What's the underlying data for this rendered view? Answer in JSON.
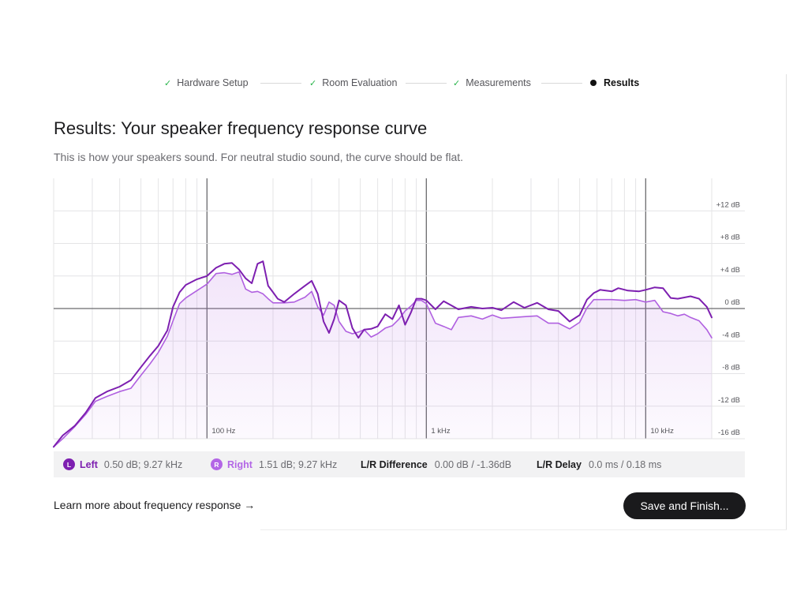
{
  "stepper": {
    "steps": [
      {
        "label": "Hardware Setup",
        "done": true
      },
      {
        "label": "Room Evaluation",
        "done": true
      },
      {
        "label": "Measurements",
        "done": true
      },
      {
        "label": "Results",
        "done": false,
        "active": true
      }
    ],
    "check_glyph": "✓",
    "check_color": "#28b44a"
  },
  "page": {
    "title": "Results: Your speaker frequency response curve",
    "subtitle": "This is how your speakers sound. For neutral studio sound, the curve should be flat."
  },
  "chart_data": {
    "type": "line",
    "x_scale": "log",
    "xlim": [
      20,
      20000
    ],
    "ylim": [
      -16,
      16
    ],
    "x_tick_labels": [
      {
        "value": 100,
        "label": "100 Hz"
      },
      {
        "value": 1000,
        "label": "1 kHz"
      },
      {
        "value": 10000,
        "label": "10 kHz"
      }
    ],
    "y_ticks": [
      {
        "value": 12,
        "label": "+12 dB"
      },
      {
        "value": 8,
        "label": "+8 dB"
      },
      {
        "value": 4,
        "label": "+4 dB"
      },
      {
        "value": 0,
        "label": "0 dB"
      },
      {
        "value": -4,
        "label": "-4 dB"
      },
      {
        "value": -8,
        "label": "-8 dB"
      },
      {
        "value": -12,
        "label": "-12 dB"
      },
      {
        "value": -16,
        "label": "-16 dB"
      }
    ],
    "grid": true,
    "series": [
      {
        "name": "Left",
        "color": "#7d1fb0",
        "points": [
          [
            20,
            -17
          ],
          [
            22,
            -15.6
          ],
          [
            25,
            -14.4
          ],
          [
            28,
            -12.8
          ],
          [
            31,
            -11
          ],
          [
            35,
            -10.2
          ],
          [
            40,
            -9.6
          ],
          [
            45,
            -8.8
          ],
          [
            50,
            -7.2
          ],
          [
            55,
            -5.8
          ],
          [
            60,
            -4.6
          ],
          [
            66,
            -2.7
          ],
          [
            70,
            0.2
          ],
          [
            75,
            2
          ],
          [
            80,
            2.9
          ],
          [
            90,
            3.6
          ],
          [
            100,
            4
          ],
          [
            110,
            5
          ],
          [
            120,
            5.5
          ],
          [
            130,
            5.6
          ],
          [
            140,
            4.8
          ],
          [
            150,
            3.7
          ],
          [
            160,
            3.1
          ],
          [
            170,
            5.5
          ],
          [
            180,
            5.8
          ],
          [
            190,
            2.8
          ],
          [
            200,
            2
          ],
          [
            210,
            1.2
          ],
          [
            225,
            0.8
          ],
          [
            250,
            1.8
          ],
          [
            280,
            2.8
          ],
          [
            300,
            3.4
          ],
          [
            320,
            1.8
          ],
          [
            340,
            -1.6
          ],
          [
            360,
            -3
          ],
          [
            380,
            -1.3
          ],
          [
            400,
            1
          ],
          [
            430,
            0.4
          ],
          [
            460,
            -2.4
          ],
          [
            490,
            -3.6
          ],
          [
            520,
            -2.6
          ],
          [
            560,
            -2.5
          ],
          [
            600,
            -2.2
          ],
          [
            650,
            -0.7
          ],
          [
            700,
            -1.3
          ],
          [
            750,
            0.4
          ],
          [
            800,
            -2
          ],
          [
            850,
            -0.5
          ],
          [
            900,
            1.2
          ],
          [
            950,
            1.2
          ],
          [
            1000,
            1
          ],
          [
            1100,
            -0.1
          ],
          [
            1200,
            0.9
          ],
          [
            1400,
            -0.1
          ],
          [
            1600,
            0.2
          ],
          [
            1800,
            0
          ],
          [
            2000,
            0.1
          ],
          [
            2200,
            -0.2
          ],
          [
            2500,
            0.8
          ],
          [
            2800,
            0.1
          ],
          [
            3200,
            0.7
          ],
          [
            3600,
            -0.1
          ],
          [
            4000,
            -0.3
          ],
          [
            4500,
            -1.6
          ],
          [
            5000,
            -0.8
          ],
          [
            5400,
            1.1
          ],
          [
            5800,
            1.9
          ],
          [
            6200,
            2.3
          ],
          [
            7000,
            2.1
          ],
          [
            7500,
            2.5
          ],
          [
            8300,
            2.2
          ],
          [
            9300,
            2.1
          ],
          [
            10000,
            2.3
          ],
          [
            11000,
            2.6
          ],
          [
            12000,
            2.5
          ],
          [
            13000,
            1.3
          ],
          [
            14000,
            1.2
          ],
          [
            16000,
            1.5
          ],
          [
            17500,
            1.2
          ],
          [
            19000,
            0.2
          ],
          [
            20000,
            -1.1
          ]
        ]
      },
      {
        "name": "Right",
        "color": "#b060e0",
        "points": [
          [
            20,
            -17
          ],
          [
            22,
            -16
          ],
          [
            25,
            -14.5
          ],
          [
            28,
            -13
          ],
          [
            31,
            -11.4
          ],
          [
            35,
            -10.8
          ],
          [
            40,
            -10.2
          ],
          [
            45,
            -9.8
          ],
          [
            50,
            -8.2
          ],
          [
            55,
            -6.8
          ],
          [
            60,
            -5.4
          ],
          [
            66,
            -3.4
          ],
          [
            70,
            -1.5
          ],
          [
            75,
            0.6
          ],
          [
            80,
            1.3
          ],
          [
            90,
            2.2
          ],
          [
            100,
            3
          ],
          [
            110,
            4.3
          ],
          [
            120,
            4.4
          ],
          [
            130,
            4.2
          ],
          [
            140,
            4.5
          ],
          [
            150,
            2.4
          ],
          [
            160,
            2
          ],
          [
            170,
            2.1
          ],
          [
            180,
            1.8
          ],
          [
            190,
            1.2
          ],
          [
            200,
            0.7
          ],
          [
            225,
            0.7
          ],
          [
            250,
            0.8
          ],
          [
            280,
            1.4
          ],
          [
            300,
            2.1
          ],
          [
            320,
            0.2
          ],
          [
            340,
            -0.8
          ],
          [
            360,
            0.8
          ],
          [
            380,
            0.4
          ],
          [
            400,
            -1.6
          ],
          [
            430,
            -2.8
          ],
          [
            460,
            -3.1
          ],
          [
            490,
            -2.9
          ],
          [
            520,
            -2.6
          ],
          [
            560,
            -3.5
          ],
          [
            600,
            -3.1
          ],
          [
            650,
            -2.4
          ],
          [
            700,
            -2.1
          ],
          [
            750,
            -1.3
          ],
          [
            800,
            -0.3
          ],
          [
            850,
            0.3
          ],
          [
            900,
            1
          ],
          [
            950,
            1
          ],
          [
            1000,
            0.6
          ],
          [
            1100,
            -1.8
          ],
          [
            1200,
            -2.2
          ],
          [
            1300,
            -2.6
          ],
          [
            1400,
            -1.1
          ],
          [
            1600,
            -0.9
          ],
          [
            1800,
            -1.3
          ],
          [
            2000,
            -0.8
          ],
          [
            2200,
            -1.2
          ],
          [
            2500,
            -1.1
          ],
          [
            2800,
            -1
          ],
          [
            3200,
            -0.9
          ],
          [
            3600,
            -1.8
          ],
          [
            4000,
            -1.8
          ],
          [
            4500,
            -2.5
          ],
          [
            5000,
            -1.7
          ],
          [
            5400,
            0.1
          ],
          [
            5800,
            1.1
          ],
          [
            6200,
            1.1
          ],
          [
            7000,
            1.1
          ],
          [
            8000,
            1
          ],
          [
            9000,
            1.1
          ],
          [
            10000,
            0.8
          ],
          [
            11000,
            1
          ],
          [
            12000,
            -0.4
          ],
          [
            13000,
            -0.6
          ],
          [
            14000,
            -0.9
          ],
          [
            15000,
            -0.7
          ],
          [
            16000,
            -1.1
          ],
          [
            17500,
            -1.5
          ],
          [
            19000,
            -2.6
          ],
          [
            20000,
            -3.6
          ]
        ]
      }
    ]
  },
  "legend": {
    "left": {
      "badge": "L",
      "name": "Left",
      "value": "0.50 dB; 9.27 kHz",
      "color": "#7d1fb0"
    },
    "right": {
      "badge": "R",
      "name": "Right",
      "value": "1.51 dB; 9.27 kHz",
      "color": "#b366e6"
    },
    "difference": {
      "label": "L/R Difference",
      "value": "0.00 dB / -1.36dB"
    },
    "delay": {
      "label": "L/R Delay",
      "value": "0.0 ms / 0.18 ms"
    }
  },
  "footer": {
    "learn_more": "Learn more about frequency response →",
    "save_button": "Save and Finish..."
  }
}
